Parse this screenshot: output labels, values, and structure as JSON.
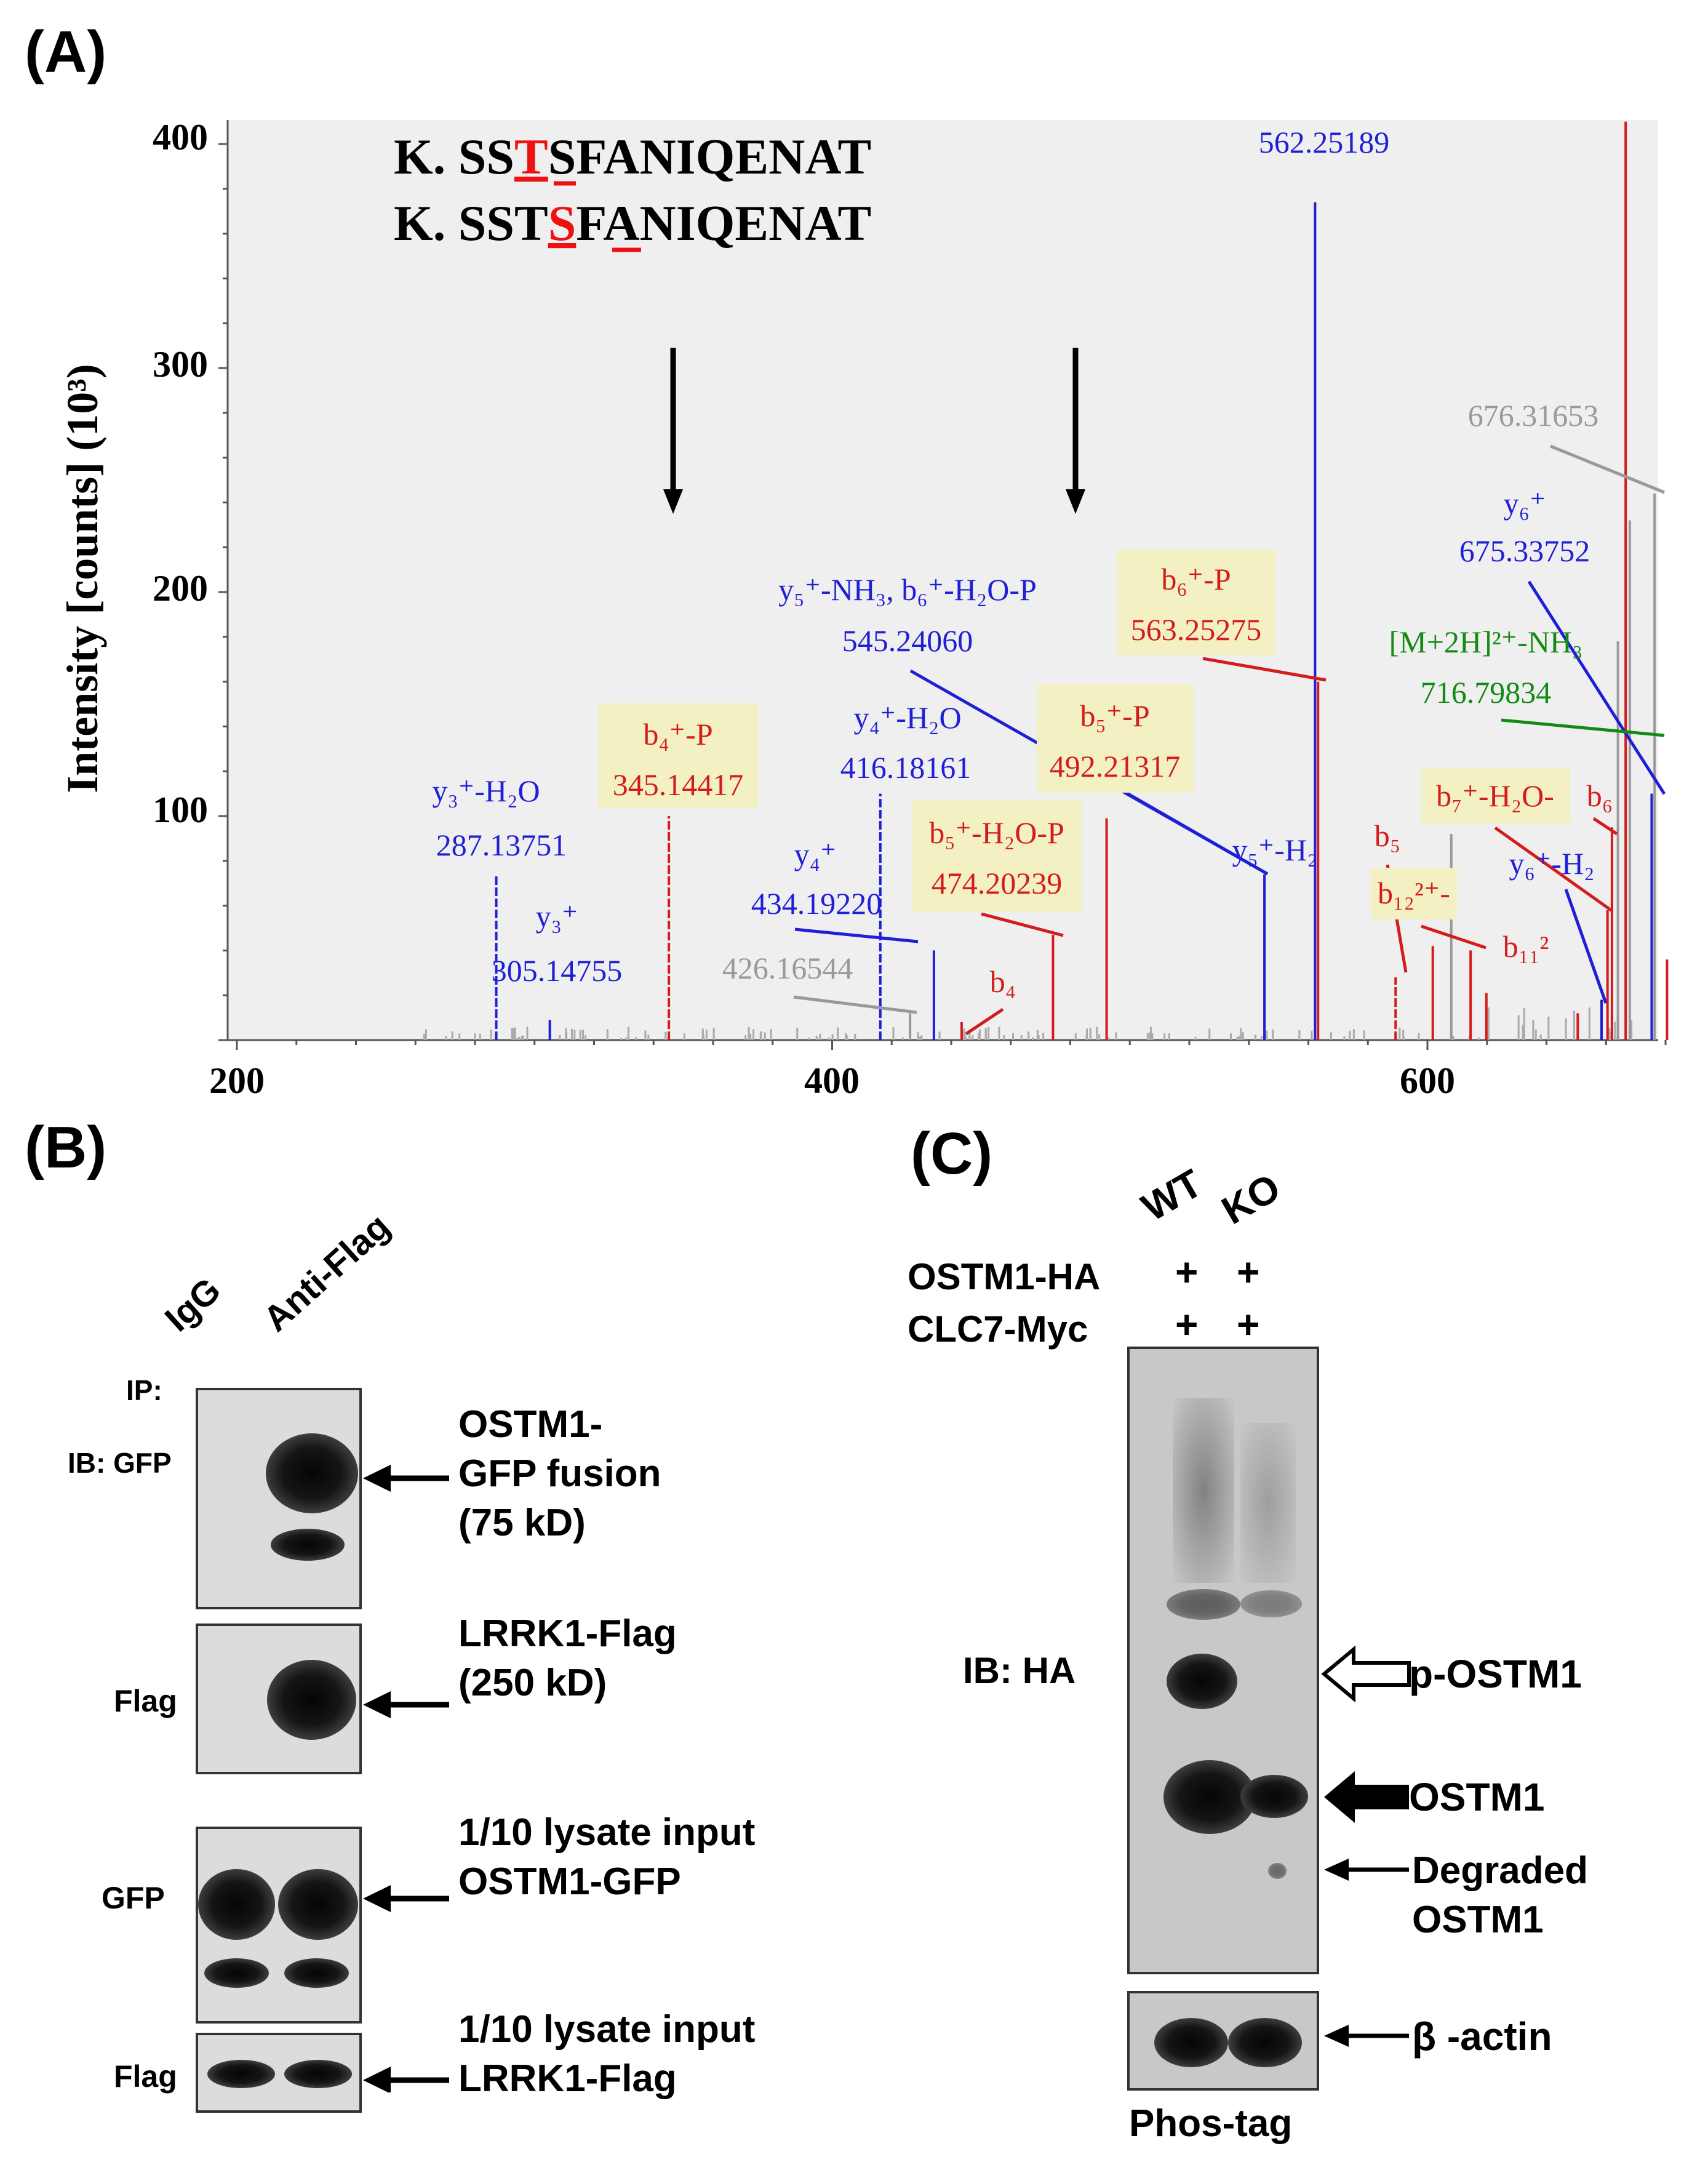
{
  "panel_a": {
    "label": "(A)",
    "chart_data": {
      "type": "spectrum",
      "ylabel": "Intensity [counts] (10³)",
      "xlim": [
        195,
        686
      ],
      "ylim": [
        0,
        410
      ],
      "xticks": [
        200,
        400,
        600
      ],
      "yticks": [
        100,
        200,
        300,
        400
      ],
      "sequences": [
        {
          "prefix": "K. SS",
          "mark": "T",
          "suffix": "SFANIQENAT"
        },
        {
          "prefix": "K. SST",
          "mark": "S",
          "suffix": "FANIQENAT"
        }
      ],
      "arrows_at": [
        347,
        480
      ],
      "peaks": [
        {
          "mz": 287.14,
          "intensity": 74,
          "color": "#1f1fd6",
          "style": "dashed"
        },
        {
          "mz": 305.15,
          "intensity": 9,
          "color": "#1f1fd6",
          "style": "solid"
        },
        {
          "mz": 345.14,
          "intensity": 100,
          "color": "#d41c1c",
          "style": "dashed"
        },
        {
          "mz": 416.18,
          "intensity": 110,
          "color": "#1f1fd6",
          "style": "dashed"
        },
        {
          "mz": 434.19,
          "intensity": 40,
          "color": "#1f1fd6",
          "style": "solid"
        },
        {
          "mz": 426.17,
          "intensity": 12,
          "color": "#999999",
          "style": "solid"
        },
        {
          "mz": 443.5,
          "intensity": 8,
          "color": "#d41c1c",
          "style": "solid"
        },
        {
          "mz": 474.2,
          "intensity": 47,
          "color": "#d41c1c",
          "style": "solid"
        },
        {
          "mz": 492.21,
          "intensity": 99,
          "color": "#d41c1c",
          "style": "solid"
        },
        {
          "mz": 545.24,
          "intensity": 74,
          "color": "#1f1fd6",
          "style": "solid"
        },
        {
          "mz": 562.25,
          "intensity": 374,
          "color": "#1f1fd6",
          "style": "solid"
        },
        {
          "mz": 563.25,
          "intensity": 160,
          "color": "#d41c1c",
          "style": "solid"
        },
        {
          "mz": 589.3,
          "intensity": 28,
          "color": "#d41c1c",
          "style": "dashed"
        },
        {
          "mz": 601.8,
          "intensity": 42,
          "color": "#d41c1c",
          "style": "solid"
        },
        {
          "mz": 608.0,
          "intensity": 92,
          "color": "#999999",
          "style": "solid"
        },
        {
          "mz": 614.5,
          "intensity": 40,
          "color": "#d41c1c",
          "style": "solid"
        },
        {
          "mz": 619.8,
          "intensity": 21,
          "color": "#d41c1c",
          "style": "solid"
        },
        {
          "mz": 650.5,
          "intensity": 12,
          "color": "#d41c1c",
          "style": "solid"
        },
        {
          "mz": 658.5,
          "intensity": 18,
          "color": "#1f1fd6",
          "style": "solid"
        },
        {
          "mz": 660.5,
          "intensity": 58,
          "color": "#d41c1c",
          "style": "solid"
        },
        {
          "mz": 662.0,
          "intensity": 95,
          "color": "#d41c1c",
          "style": "solid"
        },
        {
          "mz": 664.0,
          "intensity": 178,
          "color": "#999999",
          "style": "solid"
        },
        {
          "mz": 666.6,
          "intensity": 410,
          "color": "#d41c1c",
          "style": "solid"
        },
        {
          "mz": 668.0,
          "intensity": 232,
          "color": "#999999",
          "style": "solid"
        },
        {
          "mz": 675.34,
          "intensity": 110,
          "color": "#1f1fd6",
          "style": "solid"
        },
        {
          "mz": 676.32,
          "intensity": 244,
          "color": "#999999",
          "style": "solid"
        },
        {
          "mz": 680.5,
          "intensity": 36,
          "color": "#d41c1c",
          "style": "solid"
        }
      ],
      "annotations": [
        {
          "lines": [
            "562.25189"
          ],
          "color": "#1f1fd6",
          "highlight": false
        },
        {
          "lines": [
            "y₃⁺-H₂O",
            "287.13751"
          ],
          "color": "#1f1fd6",
          "highlight": false
        },
        {
          "lines": [
            "y₃⁺",
            "305.14755"
          ],
          "color": "#1f1fd6",
          "highlight": false
        },
        {
          "lines": [
            "b₄⁺-P",
            "345.14417"
          ],
          "color": "#d41c1c",
          "highlight": true
        },
        {
          "lines": [
            "y₄⁺",
            "434.19220"
          ],
          "color": "#1f1fd6",
          "highlight": false
        },
        {
          "lines": [
            "426.16544"
          ],
          "color": "#999999",
          "highlight": false
        },
        {
          "lines": [
            "y₄⁺-H₂O",
            "416.18161"
          ],
          "color": "#1f1fd6",
          "highlight": false
        },
        {
          "lines": [
            "y₅⁺-NH₃, b₆⁺-H₂O-P",
            "545.24060"
          ],
          "color": "#1f1fd6",
          "highlight": false
        },
        {
          "lines": [
            "b₅⁺-H₂O-P",
            "474.20239"
          ],
          "color": "#d41c1c",
          "highlight": true
        },
        {
          "lines": [
            "b₄"
          ],
          "color": "#d41c1c",
          "highlight": false
        },
        {
          "lines": [
            "b₅⁺-P",
            "492.21317"
          ],
          "color": "#d41c1c",
          "highlight": true
        },
        {
          "lines": [
            "b₆⁺-P",
            "563.25275"
          ],
          "color": "#d41c1c",
          "highlight": true
        },
        {
          "lines": [
            "y₅⁺-H₂"
          ],
          "color": "#1f1fd6",
          "highlight": false
        },
        {
          "lines": [
            "676.31653"
          ],
          "color": "#999999",
          "highlight": false
        },
        {
          "lines": [
            "y₆⁺",
            "675.33752"
          ],
          "color": "#1f1fd6",
          "highlight": false
        },
        {
          "lines": [
            "[M+2H]²⁺-NH₃",
            "716.79834"
          ],
          "color": "#138a13",
          "highlight": false
        },
        {
          "lines": [
            "b₇⁺-H₂O-"
          ],
          "color": "#d41c1c",
          "highlight": true
        },
        {
          "lines": [
            "b₆"
          ],
          "color": "#d41c1c",
          "highlight": false
        },
        {
          "lines": [
            "b₅"
          ],
          "color": "#d41c1c",
          "highlight": false
        },
        {
          "lines": [
            "b₁₂²⁺-"
          ],
          "color": "#d41c1c",
          "highlight": true
        },
        {
          "lines": [
            "y₆⁺-H₂"
          ],
          "color": "#1f1fd6",
          "highlight": false
        },
        {
          "lines": [
            "b₁₁²"
          ],
          "color": "#d41c1c",
          "highlight": false
        }
      ]
    }
  },
  "panel_b": {
    "label": "(B)",
    "lanes": [
      "IgG",
      "Anti-Flag"
    ],
    "ip_label": "IP:",
    "row_labels": {
      "ib_gfp": "IB: GFP",
      "flag": "Flag",
      "gfp": "GFP",
      "flag2": "Flag"
    },
    "annotations": {
      "ostm1_gfp": [
        "OSTM1-",
        "GFP fusion",
        "(75 kD)"
      ],
      "lrrk1_flag": [
        "LRRK1-Flag",
        "(250 kD)"
      ],
      "input_gfp": [
        "1/10 lysate input",
        "OSTM1-GFP"
      ],
      "input_flag": [
        "1/10 lysate input",
        "LRRK1-Flag"
      ]
    }
  },
  "panel_c": {
    "label": "(C)",
    "lanes": [
      "WT",
      "KO"
    ],
    "conditions": [
      {
        "name": "OSTM1-HA",
        "wt": "+",
        "ko": "+"
      },
      {
        "name": "CLC7-Myc",
        "wt": "+",
        "ko": "+"
      }
    ],
    "ib_label": "IB: HA",
    "bands": {
      "p_ostm1": "p-OSTM1",
      "ostm1": "OSTM1",
      "degraded": [
        "Degraded",
        "OSTM1"
      ],
      "actin": "β -actin"
    },
    "footer": "Phos-tag"
  }
}
